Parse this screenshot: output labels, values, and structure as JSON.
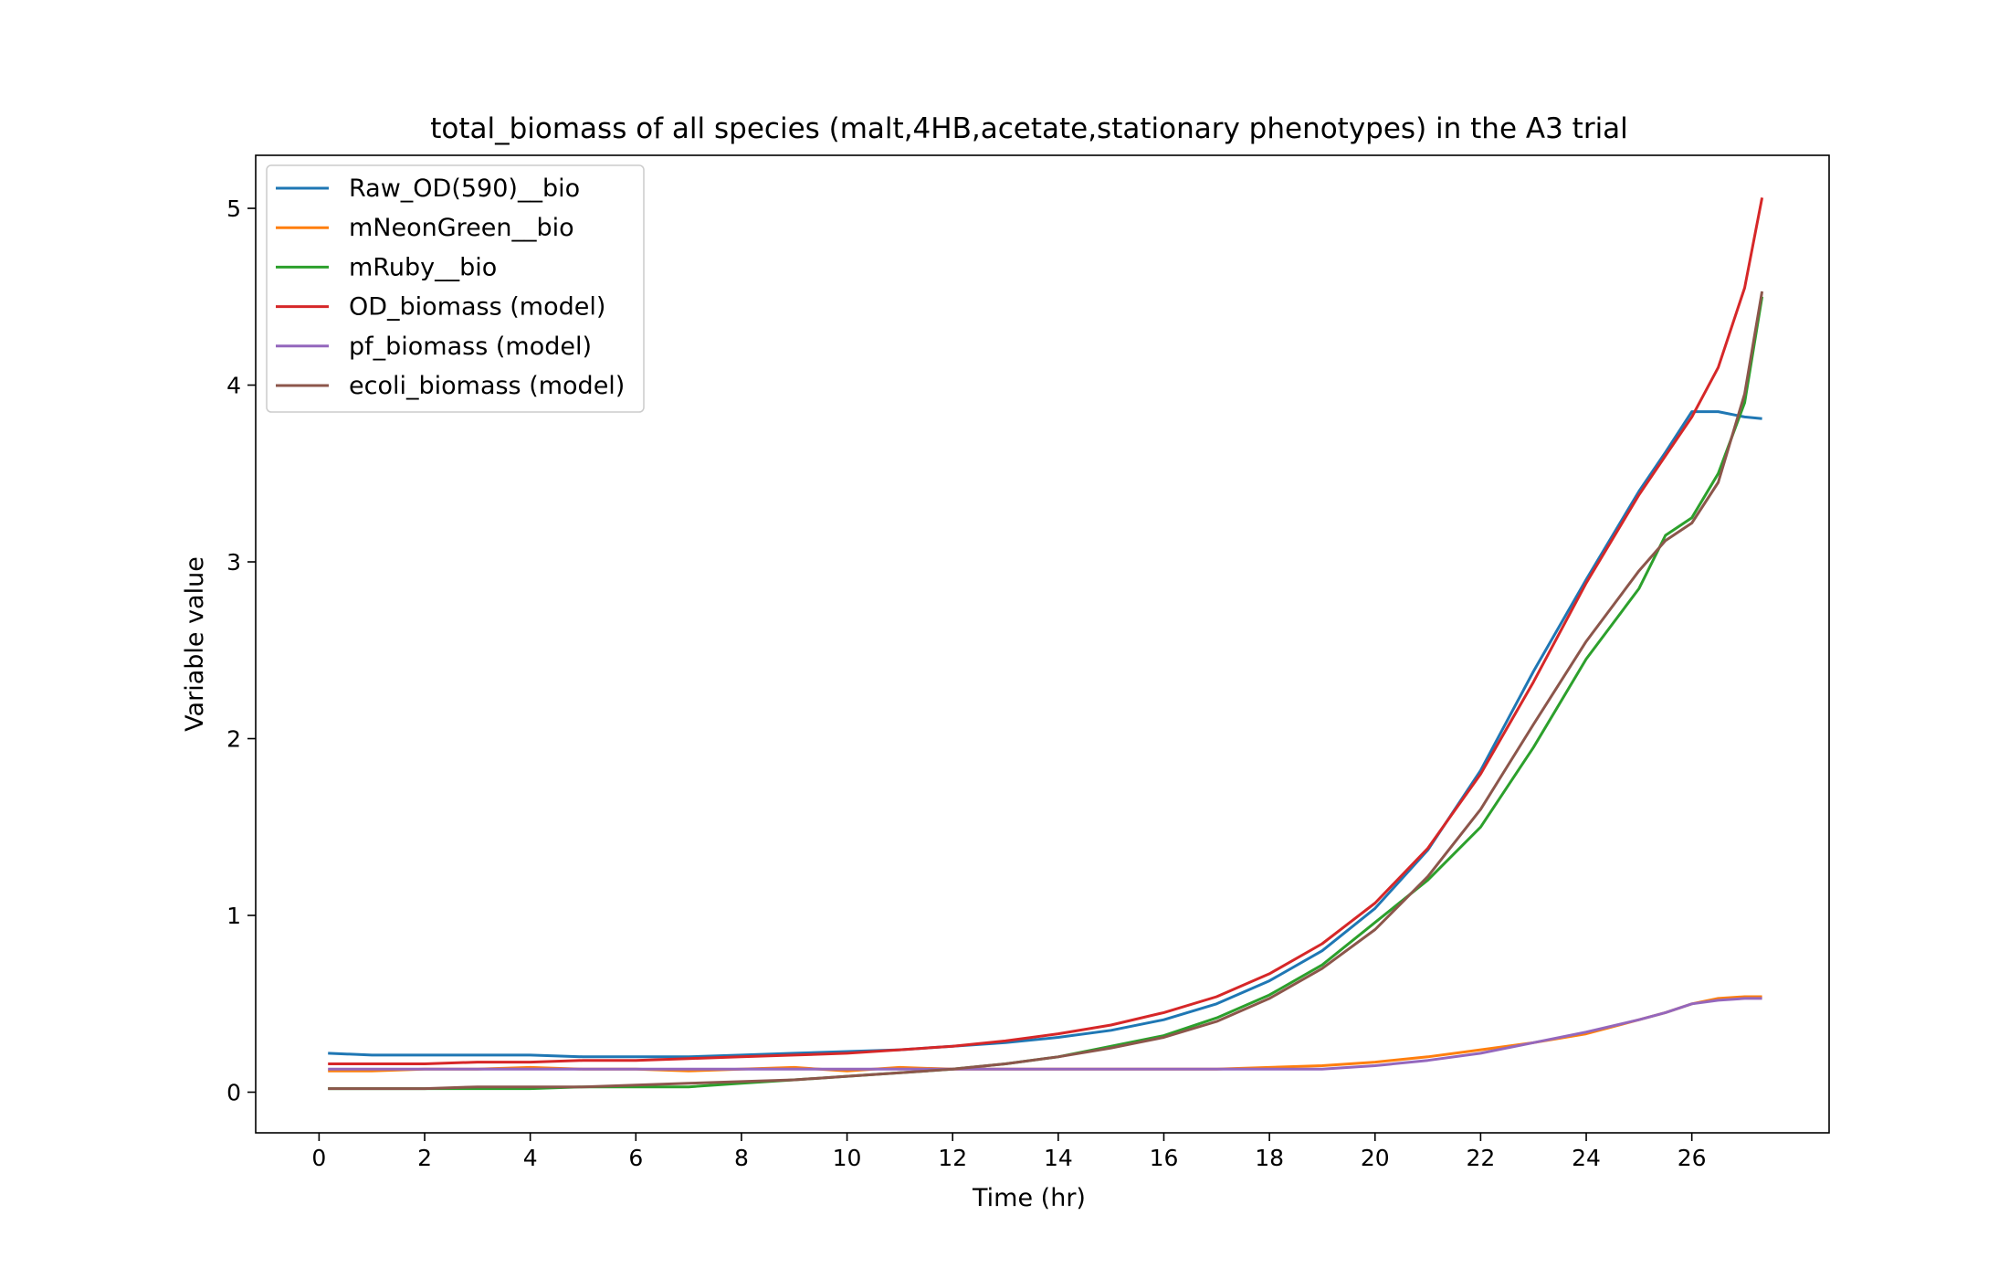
{
  "chart_data": {
    "type": "line",
    "title": "total_biomass of all species (malt,4HB,acetate,stationary phenotypes) in the A3 trial",
    "xlabel": "Time (hr)",
    "ylabel": "Variable value",
    "xlim": [
      -1.2,
      28.6
    ],
    "ylim": [
      -0.23,
      5.3
    ],
    "xticks": [
      0,
      2,
      4,
      6,
      8,
      10,
      12,
      14,
      16,
      18,
      20,
      22,
      24,
      26
    ],
    "yticks": [
      0,
      1,
      2,
      3,
      4,
      5
    ],
    "grid": false,
    "legend_position": "upper-left",
    "x": [
      0.17,
      1,
      2,
      3,
      4,
      5,
      6,
      7,
      8,
      9,
      10,
      11,
      12,
      13,
      14,
      15,
      16,
      17,
      18,
      19,
      20,
      21,
      22,
      23,
      24,
      25,
      25.5,
      26,
      26.5,
      27,
      27.33
    ],
    "series": [
      {
        "name": "Raw_OD(590)__bio",
        "color": "#1f77b4",
        "values": [
          0.22,
          0.21,
          0.21,
          0.21,
          0.21,
          0.2,
          0.2,
          0.2,
          0.21,
          0.22,
          0.23,
          0.24,
          0.26,
          0.28,
          0.31,
          0.35,
          0.41,
          0.5,
          0.63,
          0.8,
          1.04,
          1.37,
          1.82,
          2.38,
          2.9,
          3.4,
          3.62,
          3.85,
          3.85,
          3.82,
          3.81
        ]
      },
      {
        "name": "mNeonGreen__bio",
        "color": "#ff7f0e",
        "values": [
          0.12,
          0.12,
          0.13,
          0.13,
          0.14,
          0.13,
          0.13,
          0.12,
          0.13,
          0.14,
          0.12,
          0.14,
          0.13,
          0.13,
          0.13,
          0.13,
          0.13,
          0.13,
          0.14,
          0.15,
          0.17,
          0.2,
          0.24,
          0.28,
          0.33,
          0.41,
          0.45,
          0.5,
          0.53,
          0.54,
          0.54
        ]
      },
      {
        "name": "mRuby__bio",
        "color": "#2ca02c",
        "values": [
          0.02,
          0.02,
          0.02,
          0.02,
          0.02,
          0.03,
          0.03,
          0.03,
          0.05,
          0.07,
          0.09,
          0.11,
          0.13,
          0.16,
          0.2,
          0.26,
          0.32,
          0.42,
          0.55,
          0.72,
          0.96,
          1.2,
          1.5,
          1.95,
          2.45,
          2.85,
          3.15,
          3.25,
          3.5,
          3.9,
          4.5
        ]
      },
      {
        "name": "OD_biomass (model)",
        "color": "#d62728",
        "values": [
          0.16,
          0.16,
          0.16,
          0.17,
          0.17,
          0.18,
          0.18,
          0.19,
          0.2,
          0.21,
          0.22,
          0.24,
          0.26,
          0.29,
          0.33,
          0.38,
          0.45,
          0.54,
          0.67,
          0.84,
          1.07,
          1.38,
          1.8,
          2.32,
          2.88,
          3.38,
          3.6,
          3.82,
          4.1,
          4.55,
          5.06
        ]
      },
      {
        "name": "pf_biomass (model)",
        "color": "#9467bd",
        "values": [
          0.13,
          0.13,
          0.13,
          0.13,
          0.13,
          0.13,
          0.13,
          0.13,
          0.13,
          0.13,
          0.13,
          0.13,
          0.13,
          0.13,
          0.13,
          0.13,
          0.13,
          0.13,
          0.13,
          0.13,
          0.15,
          0.18,
          0.22,
          0.28,
          0.34,
          0.41,
          0.45,
          0.5,
          0.52,
          0.53,
          0.53
        ]
      },
      {
        "name": "ecoli_biomass (model)",
        "color": "#8c564b",
        "values": [
          0.02,
          0.02,
          0.02,
          0.03,
          0.03,
          0.03,
          0.04,
          0.05,
          0.06,
          0.07,
          0.09,
          0.11,
          0.13,
          0.16,
          0.2,
          0.25,
          0.31,
          0.4,
          0.53,
          0.7,
          0.92,
          1.22,
          1.6,
          2.08,
          2.55,
          2.95,
          3.12,
          3.22,
          3.45,
          3.95,
          4.53
        ]
      }
    ]
  }
}
